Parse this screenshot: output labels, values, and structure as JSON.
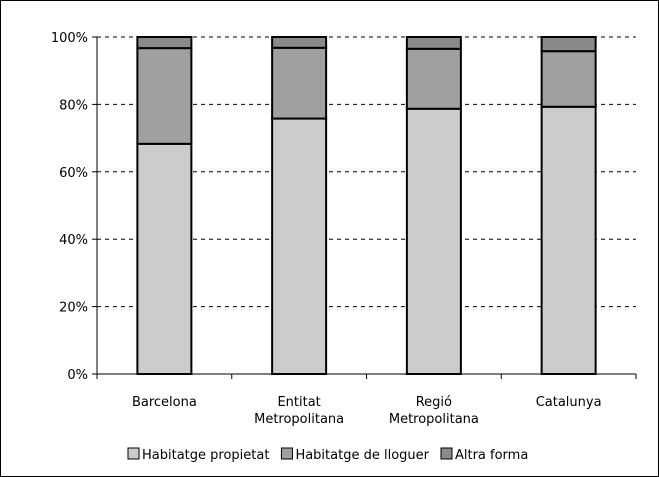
{
  "chart_data": {
    "type": "bar",
    "stacked": true,
    "percent": true,
    "title": "",
    "xlabel": "",
    "ylabel": "",
    "ylim": [
      0,
      100
    ],
    "yticks": [
      "0%",
      "20%",
      "40%",
      "60%",
      "80%",
      "100%"
    ],
    "categories": [
      [
        "Barcelona"
      ],
      [
        "Entitat",
        "Metropolitana"
      ],
      [
        "Regió",
        "Metropolitana"
      ],
      [
        "Catalunya"
      ]
    ],
    "series": [
      {
        "name": "Habitatge propietat",
        "color": "#cccccc",
        "values": [
          68.3,
          75.8,
          78.7,
          79.3
        ]
      },
      {
        "name": "Habitatge de lloguer",
        "color": "#a0a0a0",
        "values": [
          28.4,
          21.0,
          17.8,
          16.5
        ]
      },
      {
        "name": "Altra forma",
        "color": "#8a8a8a",
        "values": [
          3.3,
          3.2,
          3.5,
          4.2
        ]
      }
    ],
    "grid": true,
    "legend_position": "bottom"
  }
}
